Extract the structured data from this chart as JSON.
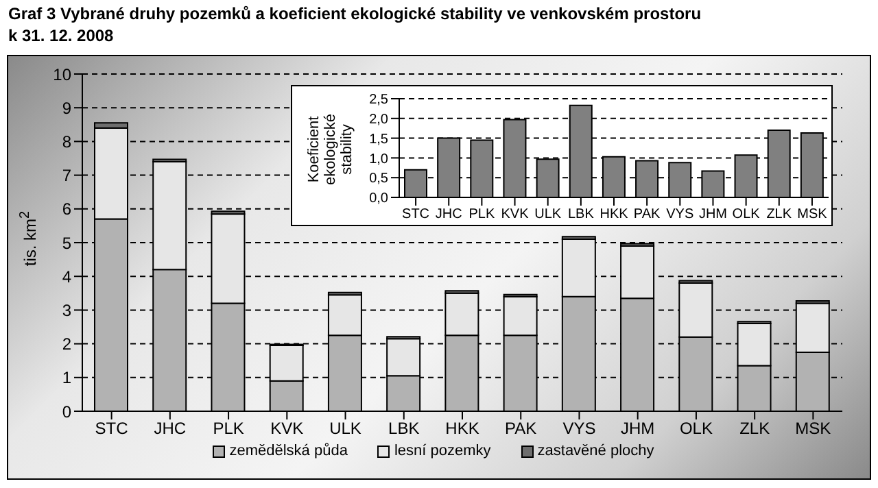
{
  "chart_data": [
    {
      "type": "bar",
      "title": "Graf 3 Vybrané druhy pozemků a koeficient ekologické stability ve venkovském prostoru k 31. 12. 2008",
      "ylabel": "tis. km$^{2}$",
      "categories": [
        "STC",
        "JHC",
        "PLK",
        "KVK",
        "ULK",
        "LBK",
        "HKK",
        "PAK",
        "VYS",
        "JHM",
        "OLK",
        "ZLK",
        "MSK"
      ],
      "stacked": true,
      "series": [
        {
          "name": "zemědělská půda",
          "color": "#b2b2b2",
          "values": [
            5.7,
            4.2,
            3.2,
            0.9,
            2.25,
            1.05,
            2.25,
            2.25,
            3.4,
            3.35,
            2.2,
            1.35,
            1.75
          ]
        },
        {
          "name": "lesní pozemky",
          "color": "#e6e6e6",
          "values": [
            2.7,
            3.2,
            2.65,
            1.05,
            1.2,
            1.1,
            1.25,
            1.15,
            1.7,
            1.55,
            1.6,
            1.25,
            1.45
          ]
        },
        {
          "name": "zastavěné plochy",
          "color": "#6e6e6e",
          "values": [
            0.15,
            0.07,
            0.08,
            0.03,
            0.07,
            0.06,
            0.07,
            0.06,
            0.08,
            0.07,
            0.07,
            0.06,
            0.07
          ]
        }
      ],
      "ylim": [
        0,
        10
      ],
      "yticks": [
        0,
        1,
        2,
        3,
        4,
        5,
        6,
        7,
        8,
        9,
        10
      ],
      "grid": "y",
      "legend": "bottom"
    },
    {
      "type": "bar",
      "ylabel": "Koeficient ekologické stability",
      "categories": [
        "STC",
        "JHC",
        "PLK",
        "KVK",
        "ULK",
        "LBK",
        "HKK",
        "PAK",
        "VYS",
        "JHM",
        "OLK",
        "ZLK",
        "MSK"
      ],
      "color": "#808080",
      "values": [
        0.7,
        1.5,
        1.45,
        1.97,
        0.97,
        2.33,
        1.03,
        0.93,
        0.88,
        0.67,
        1.07,
        1.7,
        1.63
      ],
      "ylim": [
        0,
        2.5
      ],
      "yticks": [
        {
          "value": 0,
          "label": "0,0"
        },
        {
          "value": 0.5,
          "label": "0,5"
        },
        {
          "value": 1,
          "label": "1,0"
        },
        {
          "value": 1.5,
          "label": "1,5"
        },
        {
          "value": 2,
          "label": "2,0"
        },
        {
          "value": 2.5,
          "label": "2,5"
        }
      ],
      "grid": "y"
    }
  ]
}
